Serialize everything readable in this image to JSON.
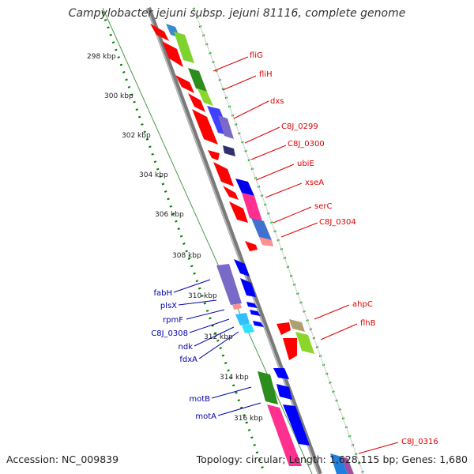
{
  "title": "Campylobacter jejuni subsp. jejuni 81116, complete genome",
  "footer": {
    "accession": "Accession: NC_009839",
    "topology": "Topology: circular; Length: 1,628,115 bp; Genes: 1,680"
  },
  "scale_labels": [
    "298 kbp",
    "300 kbp",
    "302 kbp",
    "304 kbp",
    "306 kbp",
    "308 kbp",
    "310 kbp",
    "312 kbp",
    "314 kbp",
    "316 kbp"
  ],
  "gene_labels": {
    "forward": [
      "fliG",
      "fliH",
      "dxs",
      "C8J_0299",
      "C8J_0300",
      "ubiE",
      "xseA",
      "serC",
      "C8J_0304",
      "ahpC",
      "flhB",
      "C8J_0316"
    ],
    "reverse": [
      "fabH",
      "plsX",
      "rpmF",
      "C8J_0308",
      "ndk",
      "fdxA",
      "motB",
      "motA"
    ]
  },
  "colors": {
    "forward_label": "#dd0000",
    "reverse_label": "#0000aa",
    "cds_forward": "#ff0000",
    "cds_reverse": "#0000ff",
    "backbone": "#888888",
    "scale_dots": "#008000"
  }
}
